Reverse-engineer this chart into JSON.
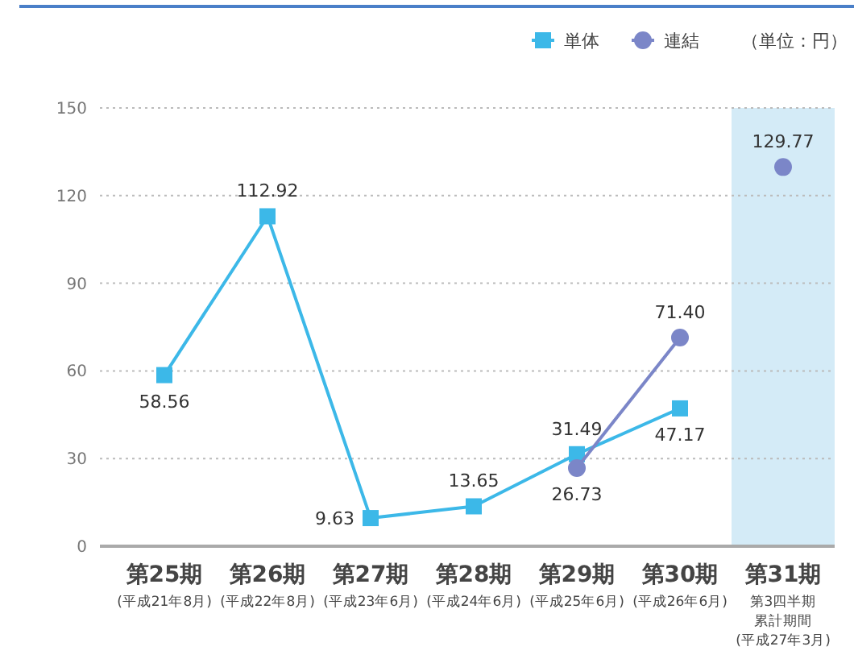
{
  "chart_data": {
    "type": "line",
    "categories": [
      "第25期(平成21年8月)",
      "第26期(平成22年8月)",
      "第27期(平成23年6月)",
      "第28期(平成24年6月)",
      "第29期(平成25年6月)",
      "第30期(平成26年6月)",
      "第31期第3四半期累計期間(平成27年3月)"
    ],
    "series": [
      {
        "name": "単体",
        "color": "#3cb8e8",
        "marker": "square",
        "values": [
          58.56,
          112.92,
          9.63,
          13.65,
          31.49,
          47.17,
          null
        ],
        "value_labels": [
          "58.56",
          "112.92",
          "9.63",
          "13.65",
          "31.49",
          "47.17",
          null
        ]
      },
      {
        "name": "連結",
        "color": "#7b86c8",
        "marker": "circle",
        "values": [
          null,
          null,
          null,
          null,
          26.73,
          71.4,
          null
        ],
        "value_labels": [
          null,
          null,
          null,
          null,
          "26.73",
          "71.40",
          null
        ]
      },
      {
        "type": "scatter",
        "color": "#7b86c8",
        "marker": "circle",
        "values": [
          null,
          null,
          null,
          null,
          null,
          null,
          129.77
        ],
        "value_labels": [
          null,
          null,
          null,
          null,
          null,
          null,
          "129.77"
        ]
      }
    ],
    "ylim": [
      0,
      150
    ],
    "yticks": [
      0,
      30,
      60,
      90,
      120,
      150
    ],
    "grid": "y",
    "legend": "top right",
    "bands": [
      {
        "axis": "x",
        "from": "第31期第3四半期累計期間(平成27年3月)",
        "to": "第31期第3四半期累計期間(平成27年3月)",
        "color": "#d4ebf7"
      }
    ],
    "annotations": [
      "（単位：円）"
    ]
  }
}
